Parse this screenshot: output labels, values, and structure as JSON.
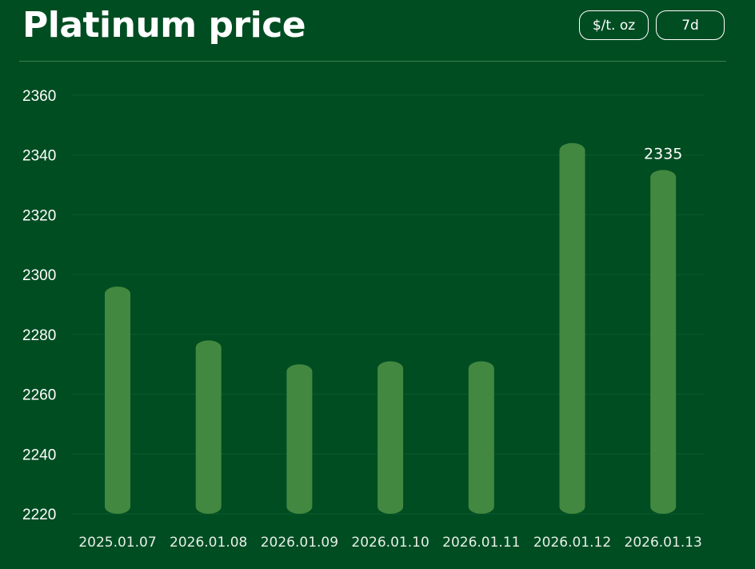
{
  "header": {
    "title": "Platinum price",
    "unit_button": "$/t. oz",
    "range_button": "7d"
  },
  "colors": {
    "background": "#004d22",
    "bar": "#438840",
    "grid": "#0c5a2c",
    "divider": "#3f7f4a"
  },
  "chart_data": {
    "type": "bar",
    "title": "Platinum price",
    "categories": [
      "2025.01.07",
      "2026.01.08",
      "2026.01.09",
      "2026.01.10",
      "2026.01.11",
      "2026.01.12",
      "2026.01.13"
    ],
    "values": [
      2296,
      2278,
      2270,
      2271,
      2271,
      2344,
      2335
    ],
    "ylim": [
      2220,
      2360
    ],
    "yticks": [
      2220,
      2240,
      2260,
      2280,
      2300,
      2320,
      2340,
      2360
    ],
    "grid": true,
    "data_labels": [
      {
        "category": "2026.01.13",
        "text": "2335"
      }
    ]
  }
}
